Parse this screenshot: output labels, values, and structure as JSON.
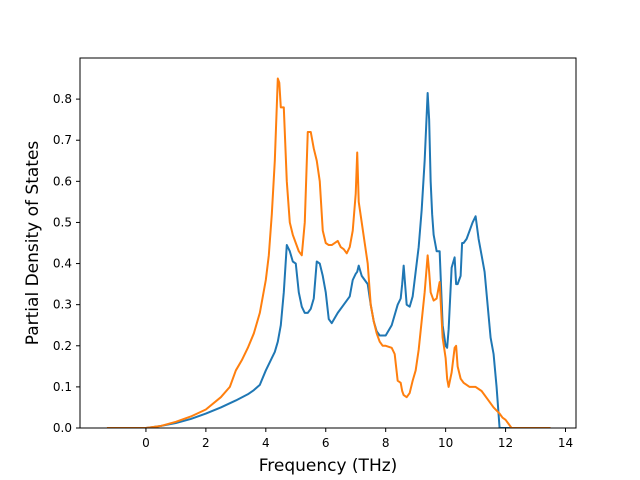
{
  "chart_data": {
    "type": "line",
    "title": "",
    "xlabel": "Frequency (THz)",
    "ylabel": "Partial Density of States",
    "xlim": [
      -2.2,
      14.35
    ],
    "ylim": [
      0.0,
      0.9
    ],
    "xticks": [
      0,
      2,
      4,
      6,
      8,
      10,
      12,
      14
    ],
    "yticks": [
      0.0,
      0.1,
      0.2,
      0.3,
      0.4,
      0.5,
      0.6,
      0.7,
      0.8
    ],
    "xtick_labels": [
      "0",
      "2",
      "4",
      "6",
      "8",
      "10",
      "12",
      "14"
    ],
    "ytick_labels": [
      "0.0",
      "0.1",
      "0.2",
      "0.3",
      "0.4",
      "0.5",
      "0.6",
      "0.7",
      "0.8"
    ],
    "grid": false,
    "legend": "none",
    "series": [
      {
        "color": "#1f77b4",
        "x": [
          -1.3,
          0.0,
          0.5,
          1.0,
          1.5,
          2.0,
          2.5,
          3.0,
          3.4,
          3.6,
          3.8,
          4.0,
          4.2,
          4.3,
          4.4,
          4.5,
          4.6,
          4.7,
          4.8,
          4.9,
          5.0,
          5.1,
          5.2,
          5.3,
          5.4,
          5.5,
          5.6,
          5.7,
          5.8,
          5.9,
          6.0,
          6.1,
          6.2,
          6.4,
          6.6,
          6.8,
          6.9,
          7.0,
          7.05,
          7.1,
          7.2,
          7.3,
          7.4,
          7.5,
          7.6,
          7.7,
          7.8,
          7.9,
          8.0,
          8.2,
          8.4,
          8.5,
          8.55,
          8.6,
          8.7,
          8.8,
          8.9,
          9.0,
          9.1,
          9.2,
          9.3,
          9.4,
          9.45,
          9.5,
          9.55,
          9.6,
          9.7,
          9.8,
          9.9,
          10.0,
          10.05,
          10.1,
          10.2,
          10.3,
          10.35,
          10.4,
          10.5,
          10.55,
          10.6,
          10.7,
          10.8,
          10.9,
          11.0,
          11.1,
          11.2,
          11.3,
          11.4,
          11.5,
          11.6,
          11.7,
          11.8,
          11.9,
          12.0,
          12.1,
          12.2,
          12.25,
          12.3,
          13.5
        ],
        "y": [
          0.0,
          0.0,
          0.005,
          0.012,
          0.022,
          0.035,
          0.05,
          0.067,
          0.082,
          0.092,
          0.105,
          0.14,
          0.17,
          0.185,
          0.21,
          0.25,
          0.33,
          0.445,
          0.43,
          0.405,
          0.4,
          0.33,
          0.295,
          0.28,
          0.28,
          0.29,
          0.315,
          0.405,
          0.4,
          0.37,
          0.33,
          0.265,
          0.255,
          0.28,
          0.3,
          0.32,
          0.36,
          0.375,
          0.38,
          0.395,
          0.37,
          0.36,
          0.35,
          0.3,
          0.26,
          0.235,
          0.225,
          0.225,
          0.225,
          0.25,
          0.3,
          0.315,
          0.35,
          0.395,
          0.3,
          0.295,
          0.32,
          0.38,
          0.44,
          0.53,
          0.65,
          0.815,
          0.75,
          0.6,
          0.52,
          0.47,
          0.43,
          0.43,
          0.25,
          0.2,
          0.195,
          0.24,
          0.39,
          0.415,
          0.35,
          0.35,
          0.37,
          0.45,
          0.45,
          0.46,
          0.48,
          0.5,
          0.515,
          0.46,
          0.42,
          0.38,
          0.3,
          0.22,
          0.18,
          0.1,
          0.0,
          0.0,
          0.0,
          0.0,
          0.0,
          0.0,
          0.0,
          0.0
        ]
      },
      {
        "color": "#ff7f0e",
        "x": [
          -1.3,
          0.0,
          0.5,
          1.0,
          1.5,
          2.0,
          2.5,
          2.8,
          3.0,
          3.2,
          3.4,
          3.6,
          3.8,
          4.0,
          4.1,
          4.2,
          4.3,
          4.4,
          4.45,
          4.5,
          4.6,
          4.7,
          4.8,
          4.9,
          5.0,
          5.1,
          5.2,
          5.3,
          5.4,
          5.5,
          5.6,
          5.7,
          5.8,
          5.9,
          6.0,
          6.1,
          6.2,
          6.4,
          6.5,
          6.6,
          6.7,
          6.8,
          6.9,
          7.0,
          7.05,
          7.1,
          7.2,
          7.3,
          7.4,
          7.5,
          7.6,
          7.7,
          7.8,
          7.9,
          8.0,
          8.2,
          8.3,
          8.4,
          8.5,
          8.55,
          8.6,
          8.7,
          8.8,
          8.9,
          9.0,
          9.1,
          9.2,
          9.3,
          9.4,
          9.45,
          9.5,
          9.6,
          9.7,
          9.8,
          9.9,
          10.0,
          10.05,
          10.1,
          10.2,
          10.3,
          10.35,
          10.4,
          10.5,
          10.6,
          10.8,
          11.0,
          11.2,
          11.4,
          11.6,
          11.8,
          11.9,
          12.0,
          12.1,
          12.2,
          12.3,
          12.35,
          12.4,
          13.5
        ],
        "y": [
          0.0,
          0.0,
          0.005,
          0.015,
          0.028,
          0.045,
          0.075,
          0.1,
          0.14,
          0.165,
          0.195,
          0.23,
          0.28,
          0.36,
          0.42,
          0.52,
          0.65,
          0.85,
          0.84,
          0.78,
          0.78,
          0.6,
          0.5,
          0.47,
          0.45,
          0.43,
          0.42,
          0.5,
          0.72,
          0.72,
          0.68,
          0.65,
          0.6,
          0.48,
          0.45,
          0.445,
          0.445,
          0.455,
          0.44,
          0.435,
          0.425,
          0.44,
          0.48,
          0.57,
          0.67,
          0.55,
          0.5,
          0.45,
          0.4,
          0.3,
          0.26,
          0.23,
          0.21,
          0.2,
          0.2,
          0.195,
          0.18,
          0.115,
          0.11,
          0.09,
          0.08,
          0.075,
          0.085,
          0.115,
          0.14,
          0.19,
          0.26,
          0.33,
          0.42,
          0.38,
          0.33,
          0.31,
          0.315,
          0.355,
          0.22,
          0.17,
          0.12,
          0.1,
          0.135,
          0.195,
          0.2,
          0.15,
          0.12,
          0.11,
          0.1,
          0.1,
          0.09,
          0.07,
          0.05,
          0.035,
          0.025,
          0.02,
          0.01,
          0.0,
          0.0,
          0.0,
          0.0,
          0.0
        ]
      }
    ]
  }
}
